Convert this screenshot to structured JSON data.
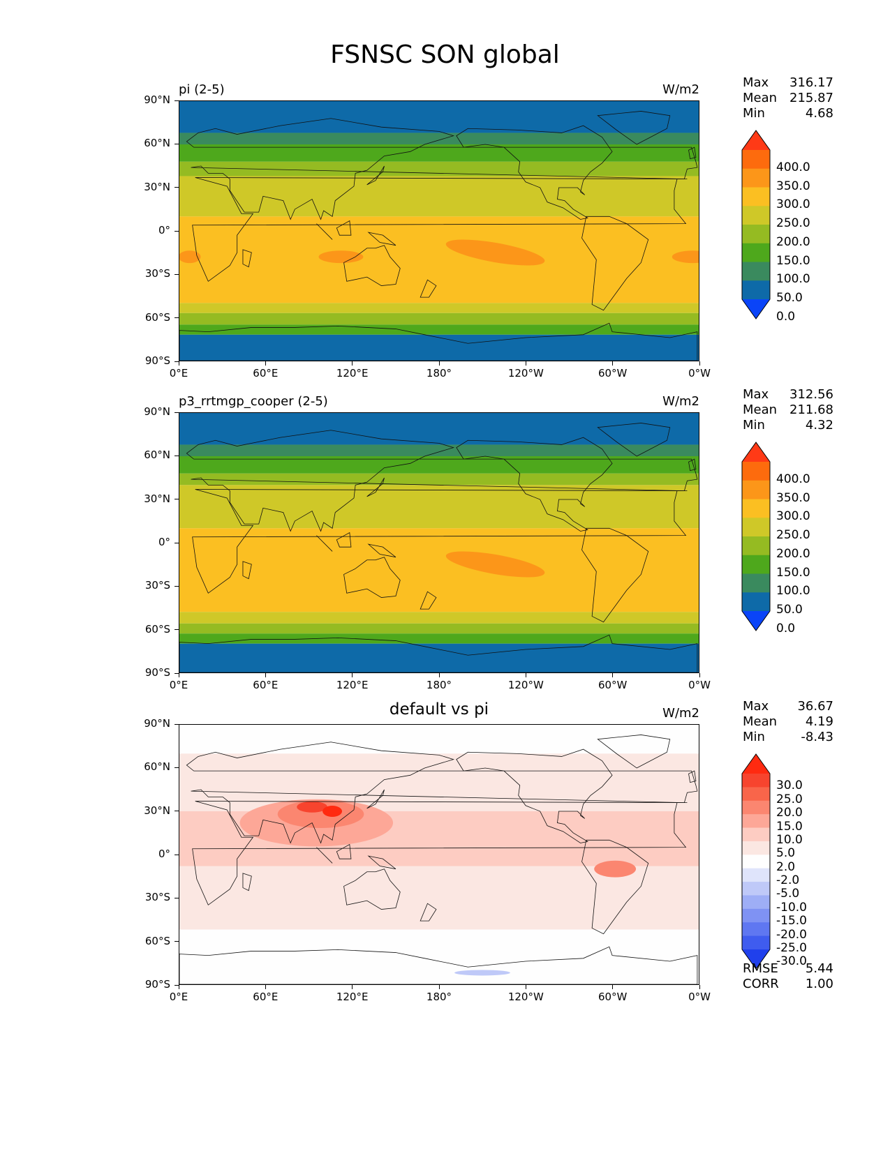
{
  "title": "FSNSC SON global",
  "lat_ticks": [
    "90°N",
    "60°N",
    "30°N",
    "0°",
    "30°S",
    "60°S",
    "90°S"
  ],
  "lon_ticks": [
    "0°E",
    "60°E",
    "120°E",
    "180°",
    "120°W",
    "60°W",
    "0°W"
  ],
  "panels": [
    {
      "name": "pi (2-5)",
      "units": "W/m2",
      "stats": {
        "max_label": "Max",
        "max": "316.17",
        "mean_label": "Mean",
        "mean": "215.87",
        "min_label": "Min",
        "min": "4.68"
      },
      "colorbar": {
        "labels": [
          "400.0",
          "350.0",
          "300.0",
          "250.0",
          "200.0",
          "150.0",
          "100.0",
          "50.0",
          "0.0"
        ],
        "colors": [
          "#ff3a16",
          "#fd6b0d",
          "#fc9619",
          "#fbbf22",
          "#cfc828",
          "#95bb22",
          "#4ea81c",
          "#3a8a5e",
          "#0e6aa8",
          "#0a44f8"
        ]
      }
    },
    {
      "name": "p3_rrtmgp_cooper (2-5)",
      "units": "W/m2",
      "stats": {
        "max_label": "Max",
        "max": "312.56",
        "mean_label": "Mean",
        "mean": "211.68",
        "min_label": "Min",
        "min": "4.32"
      },
      "colorbar": {
        "labels": [
          "400.0",
          "350.0",
          "300.0",
          "250.0",
          "200.0",
          "150.0",
          "100.0",
          "50.0",
          "0.0"
        ],
        "colors": [
          "#ff3a16",
          "#fd6b0d",
          "#fc9619",
          "#fbbf22",
          "#cfc828",
          "#95bb22",
          "#4ea81c",
          "#3a8a5e",
          "#0e6aa8",
          "#0a44f8"
        ]
      }
    },
    {
      "name": "default vs pi",
      "units": "W/m2",
      "stats": {
        "max_label": "Max",
        "max": "36.67",
        "mean_label": "Mean",
        "mean": "4.19",
        "min_label": "Min",
        "min": "-8.43"
      },
      "colorbar": {
        "labels": [
          "30.0",
          "25.0",
          "20.0",
          "15.0",
          "10.0",
          "5.0",
          "2.0",
          "-2.0",
          "-5.0",
          "-10.0",
          "-15.0",
          "-20.0",
          "-25.0",
          "-30.0"
        ],
        "colors": [
          "#ff2a10",
          "#f7442e",
          "#f9654a",
          "#fb8670",
          "#fda797",
          "#fdccc2",
          "#fbe7e2",
          "#fefefe",
          "#dfe4fb",
          "#bfc9f8",
          "#9eaef6",
          "#7f92f3",
          "#5f77f1",
          "#3f5cef",
          "#2040ec"
        ]
      },
      "extra": {
        "rmse_label": "RMSE",
        "rmse": "5.44",
        "corr_label": "CORR",
        "corr": "1.00"
      }
    }
  ],
  "chart_data": [
    {
      "type": "heatmap",
      "title": "pi (2-5)",
      "units": "W/m2",
      "xlim": [
        0,
        360
      ],
      "ylim": [
        -90,
        90
      ],
      "zonal_mean_bands": [
        {
          "lat": [
            68,
            90
          ],
          "value": 25
        },
        {
          "lat": [
            60,
            68
          ],
          "value": 90
        },
        {
          "lat": [
            48,
            60
          ],
          "value": 130
        },
        {
          "lat": [
            38,
            48
          ],
          "value": 175
        },
        {
          "lat": [
            10,
            38
          ],
          "value": 225
        },
        {
          "lat": [
            -50,
            10
          ],
          "value": 275
        },
        {
          "lat": [
            -57,
            -50
          ],
          "value": 230
        },
        {
          "lat": [
            -65,
            -57
          ],
          "value": 175
        },
        {
          "lat": [
            -72,
            -65
          ],
          "value": 120
        },
        {
          "lat": [
            -90,
            -72
          ],
          "value": 30
        }
      ],
      "levels": [
        0,
        50,
        100,
        150,
        200,
        250,
        300,
        350,
        400
      ],
      "max": 316.17,
      "mean": 215.87,
      "min": 4.68
    },
    {
      "type": "heatmap",
      "title": "p3_rrtmgp_cooper (2-5)",
      "units": "W/m2",
      "xlim": [
        0,
        360
      ],
      "ylim": [
        -90,
        90
      ],
      "zonal_mean_bands": [
        {
          "lat": [
            68,
            90
          ],
          "value": 25
        },
        {
          "lat": [
            60,
            68
          ],
          "value": 90
        },
        {
          "lat": [
            48,
            60
          ],
          "value": 130
        },
        {
          "lat": [
            40,
            48
          ],
          "value": 175
        },
        {
          "lat": [
            10,
            40
          ],
          "value": 225
        },
        {
          "lat": [
            -48,
            10
          ],
          "value": 270
        },
        {
          "lat": [
            -56,
            -48
          ],
          "value": 230
        },
        {
          "lat": [
            -63,
            -56
          ],
          "value": 175
        },
        {
          "lat": [
            -70,
            -63
          ],
          "value": 120
        },
        {
          "lat": [
            -90,
            -70
          ],
          "value": 30
        }
      ],
      "levels": [
        0,
        50,
        100,
        150,
        200,
        250,
        300,
        350,
        400
      ],
      "max": 312.56,
      "mean": 211.68,
      "min": 4.32
    },
    {
      "type": "heatmap",
      "title": "default vs pi",
      "units": "W/m2",
      "xlim": [
        0,
        360
      ],
      "ylim": [
        -90,
        90
      ],
      "levels": [
        -30,
        -25,
        -20,
        -15,
        -10,
        -5,
        -2,
        2,
        5,
        10,
        15,
        20,
        25,
        30
      ],
      "max": 36.67,
      "mean": 4.19,
      "min": -8.43,
      "rmse": 5.44,
      "corr": 1.0
    }
  ]
}
